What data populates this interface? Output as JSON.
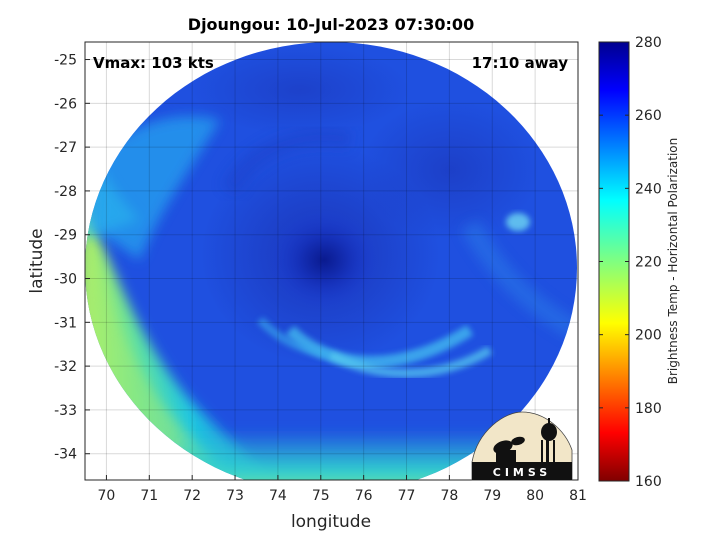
{
  "chart_data": {
    "type": "heatmap",
    "title": "Djoungou: 10-Jul-2023 07:30:00",
    "xlabel": "longitude",
    "ylabel": "latitude",
    "xlim": [
      69.5,
      81
    ],
    "ylim": [
      -34.6,
      -24.6
    ],
    "x_ticks": [
      70,
      71,
      72,
      73,
      74,
      75,
      76,
      77,
      78,
      79,
      80,
      81
    ],
    "y_ticks": [
      -25,
      -26,
      -27,
      -28,
      -29,
      -30,
      -31,
      -32,
      -33,
      -34
    ],
    "grid": true,
    "annotations": {
      "vmax": "Vmax: 103 kts",
      "away": "17:10 away"
    },
    "storm_center": {
      "lon": 75.0,
      "lat": -29.9
    },
    "colorbar": {
      "label": "Brightness Temp - Horizontal Polarization",
      "min": 160,
      "max": 280,
      "ticks": [
        160,
        180,
        200,
        220,
        240,
        260,
        280
      ],
      "colormap": "jet"
    },
    "logo": "CIMSS"
  }
}
